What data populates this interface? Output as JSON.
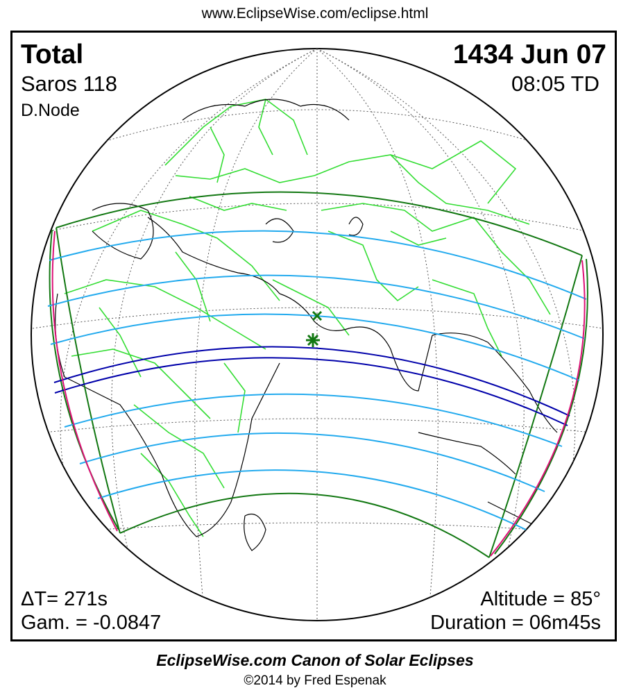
{
  "header": {
    "url": "www.EclipseWise.com/eclipse.html"
  },
  "eclipse": {
    "type": "Total",
    "date": "1434 Jun 07",
    "saros": "Saros 118",
    "time": "08:05 TD",
    "node": "D.Node",
    "delta_t": "ΔT=    271s",
    "gamma": "Gam. = -0.0847",
    "altitude": "Altitude = 85°",
    "duration": "Duration = 06m45s"
  },
  "footer": {
    "canon": "EclipseWise.com Canon of Solar Eclipses",
    "copyright": "©2014 by Fred Espenak"
  },
  "colors": {
    "land_borders": "#33dd33",
    "coastline": "#000000",
    "grid": "#555555",
    "penumbral_limits": "#117711",
    "partial_contours": "#22aaee",
    "totality_path": "#0000aa",
    "rise_set_curves": "#dd1177",
    "greatest_eclipse_marker": "#117711"
  }
}
